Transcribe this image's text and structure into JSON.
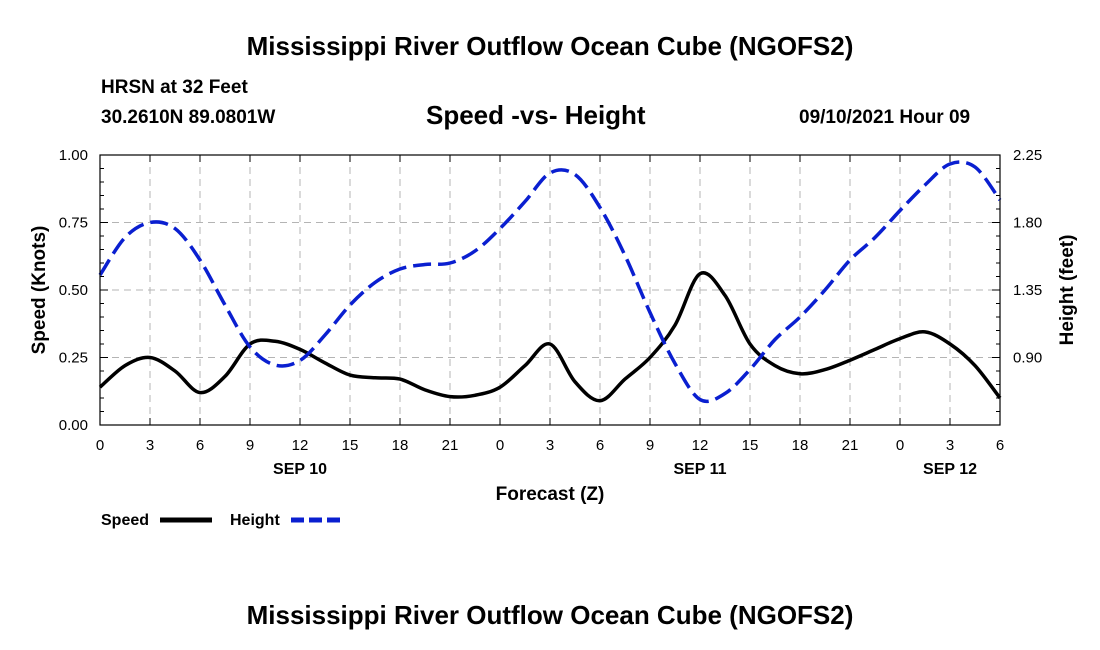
{
  "page": {
    "title": "Mississippi River Outflow Ocean Cube (NGOFS2)",
    "station": "HRSN at 32 Feet",
    "coords": "30.2610N  89.0801W",
    "plot_title": "Speed -vs- Height",
    "datetime": "09/10/2021 Hour 09",
    "footer_title": "Mississippi River Outflow Ocean Cube (NGOFS2)"
  },
  "colors": {
    "speed": "#000000",
    "height": "#0a1fd0",
    "grid": "#b4b4b4"
  },
  "chart_data": {
    "type": "line",
    "title": "Speed -vs- Height",
    "xlabel": "Forecast (Z)",
    "ylabel": "Speed (Knots)",
    "y2label": "Height (feet)",
    "x_unit": "forecast hours from 00Z Sep 10",
    "xlim": [
      0,
      54
    ],
    "ylim": [
      0,
      1.0
    ],
    "y2lim": [
      0.45,
      2.25
    ],
    "x_ticks": [
      0,
      3,
      6,
      9,
      12,
      15,
      18,
      21,
      24,
      27,
      30,
      33,
      36,
      39,
      42,
      45,
      48,
      51,
      54
    ],
    "x_tick_labels": [
      "0",
      "3",
      "6",
      "9",
      "12",
      "15",
      "18",
      "21",
      "0",
      "3",
      "6",
      "9",
      "12",
      "15",
      "18",
      "21",
      "0",
      "3",
      "6"
    ],
    "y_ticks": [
      0,
      0.25,
      0.5,
      0.75,
      1.0
    ],
    "y_tick_labels": [
      "0.00",
      "0.25",
      "0.50",
      "0.75",
      "1.00"
    ],
    "y2_ticks": [
      0.9,
      1.35,
      1.8,
      2.25
    ],
    "y2_tick_labels": [
      "0.90",
      "1.35",
      "1.80",
      "2.25"
    ],
    "day_labels": [
      {
        "x": 12,
        "label": "SEP 10"
      },
      {
        "x": 36,
        "label": "SEP 11"
      },
      {
        "x": 51,
        "label": "SEP 12"
      }
    ],
    "grid": true,
    "legend": {
      "position": "bottom-left",
      "speed_label": "Speed",
      "height_label": "Height"
    },
    "series": [
      {
        "name": "Speed",
        "axis": "left",
        "style": "solid",
        "x": [
          0,
          1.5,
          3,
          4.5,
          6,
          7.5,
          9,
          10.5,
          12,
          13.5,
          15,
          16.5,
          18,
          19.5,
          21,
          22.5,
          24,
          25.5,
          27,
          28.5,
          30,
          31.5,
          33,
          34.5,
          36,
          37.5,
          39,
          40.5,
          42,
          43.5,
          45,
          46.5,
          48,
          49.5,
          51,
          52.5,
          54
        ],
        "values": [
          0.14,
          0.22,
          0.25,
          0.2,
          0.12,
          0.18,
          0.3,
          0.31,
          0.28,
          0.23,
          0.185,
          0.175,
          0.17,
          0.13,
          0.105,
          0.11,
          0.14,
          0.22,
          0.3,
          0.16,
          0.09,
          0.17,
          0.25,
          0.37,
          0.56,
          0.48,
          0.3,
          0.22,
          0.19,
          0.205,
          0.24,
          0.28,
          0.32,
          0.345,
          0.3,
          0.22,
          0.1
        ]
      },
      {
        "name": "Height",
        "axis": "right",
        "style": "dashed",
        "x": [
          0,
          1.5,
          3,
          4.5,
          6,
          7.5,
          9,
          10.5,
          12,
          13.5,
          15,
          16.5,
          18,
          19.5,
          21,
          22.5,
          24,
          25.5,
          27,
          28.5,
          30,
          31.5,
          33,
          34.5,
          36,
          37.5,
          39,
          40.5,
          42,
          43.5,
          45,
          46.5,
          48,
          49.5,
          51,
          52.5,
          54
        ],
        "values": [
          1.45,
          1.7,
          1.8,
          1.76,
          1.55,
          1.25,
          0.97,
          0.85,
          0.88,
          1.05,
          1.25,
          1.4,
          1.49,
          1.52,
          1.53,
          1.61,
          1.76,
          1.94,
          2.13,
          2.12,
          1.9,
          1.58,
          1.2,
          0.86,
          0.62,
          0.66,
          0.82,
          1.02,
          1.17,
          1.35,
          1.55,
          1.7,
          1.88,
          2.05,
          2.19,
          2.17,
          1.95
        ]
      }
    ]
  }
}
